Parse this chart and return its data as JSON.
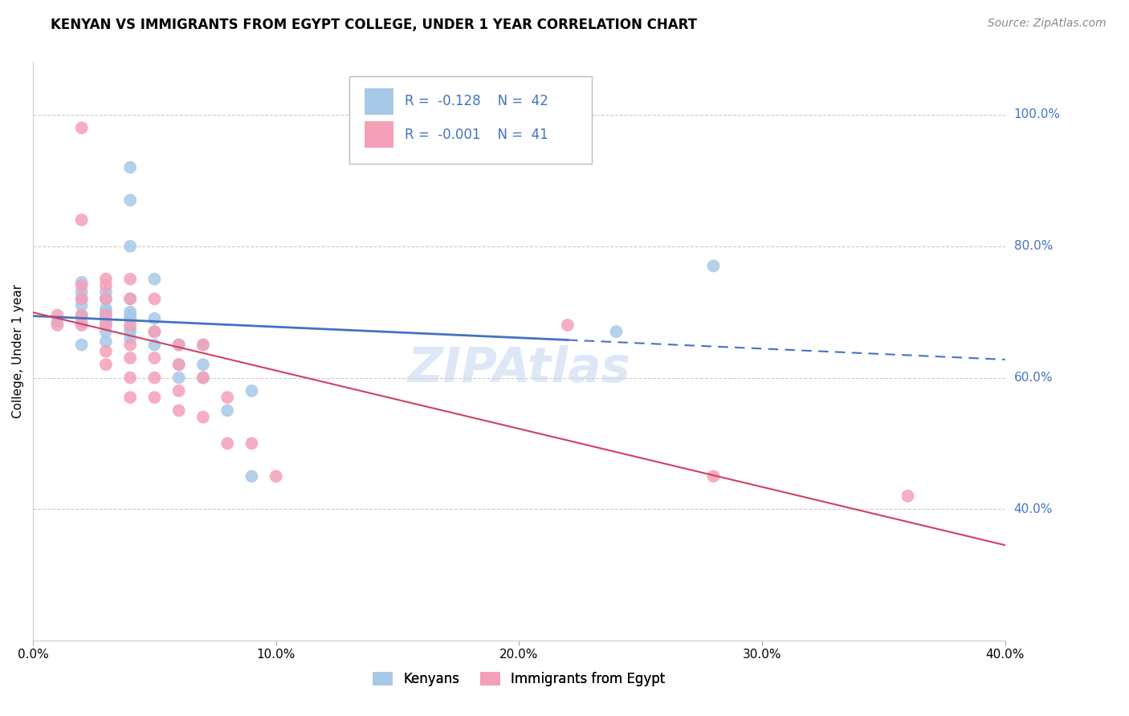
{
  "title": "KENYAN VS IMMIGRANTS FROM EGYPT COLLEGE, UNDER 1 YEAR CORRELATION CHART",
  "source": "Source: ZipAtlas.com",
  "ylabel": "College, Under 1 year",
  "xlim": [
    0.0,
    0.4
  ],
  "ylim": [
    0.2,
    1.08
  ],
  "x_ticks": [
    0.0,
    0.1,
    0.2,
    0.3,
    0.4
  ],
  "x_tick_labels": [
    "0.0%",
    "10.0%",
    "20.0%",
    "30.0%",
    "40.0%"
  ],
  "y_ticks_right": [
    0.4,
    0.6,
    0.8,
    1.0
  ],
  "y_labels_right": [
    "40.0%",
    "60.0%",
    "80.0%",
    "100.0%"
  ],
  "legend_r_kenyans": "-0.128",
  "legend_n_kenyans": "42",
  "legend_r_egypt": "-0.001",
  "legend_n_egypt": "41",
  "kenyans_color": "#a8c8e8",
  "egypt_color": "#f4a0b8",
  "trendline_kenyans_color": "#4472c4",
  "trendline_egypt_color": "#d04060",
  "kenyans_x": [
    0.01,
    0.02,
    0.02,
    0.02,
    0.02,
    0.02,
    0.02,
    0.02,
    0.03,
    0.03,
    0.03,
    0.03,
    0.03,
    0.03,
    0.03,
    0.03,
    0.03,
    0.04,
    0.04,
    0.04,
    0.04,
    0.04,
    0.04,
    0.04,
    0.04,
    0.04,
    0.04,
    0.05,
    0.05,
    0.05,
    0.05,
    0.06,
    0.06,
    0.06,
    0.07,
    0.07,
    0.07,
    0.08,
    0.09,
    0.09,
    0.24,
    0.28
  ],
  "kenyans_y": [
    0.685,
    0.685,
    0.695,
    0.71,
    0.72,
    0.73,
    0.745,
    0.65,
    0.655,
    0.67,
    0.68,
    0.685,
    0.695,
    0.7,
    0.705,
    0.72,
    0.73,
    0.66,
    0.67,
    0.675,
    0.69,
    0.695,
    0.7,
    0.72,
    0.8,
    0.87,
    0.92,
    0.65,
    0.67,
    0.69,
    0.75,
    0.6,
    0.62,
    0.65,
    0.6,
    0.62,
    0.65,
    0.55,
    0.45,
    0.58,
    0.67,
    0.77
  ],
  "egypt_x": [
    0.01,
    0.01,
    0.02,
    0.02,
    0.02,
    0.02,
    0.02,
    0.02,
    0.03,
    0.03,
    0.03,
    0.03,
    0.03,
    0.03,
    0.03,
    0.04,
    0.04,
    0.04,
    0.04,
    0.04,
    0.04,
    0.04,
    0.05,
    0.05,
    0.05,
    0.05,
    0.05,
    0.06,
    0.06,
    0.06,
    0.06,
    0.07,
    0.07,
    0.07,
    0.08,
    0.08,
    0.09,
    0.1,
    0.22,
    0.28,
    0.36
  ],
  "egypt_y": [
    0.68,
    0.695,
    0.68,
    0.695,
    0.72,
    0.74,
    0.84,
    0.98,
    0.62,
    0.64,
    0.68,
    0.695,
    0.72,
    0.74,
    0.75,
    0.57,
    0.6,
    0.63,
    0.65,
    0.68,
    0.72,
    0.75,
    0.57,
    0.6,
    0.63,
    0.67,
    0.72,
    0.55,
    0.58,
    0.62,
    0.65,
    0.54,
    0.6,
    0.65,
    0.5,
    0.57,
    0.5,
    0.45,
    0.68,
    0.45,
    0.42
  ],
  "trendline_solid_end": 0.22,
  "trendline_dashed_start": 0.22,
  "trendline_dashed_end": 0.4
}
